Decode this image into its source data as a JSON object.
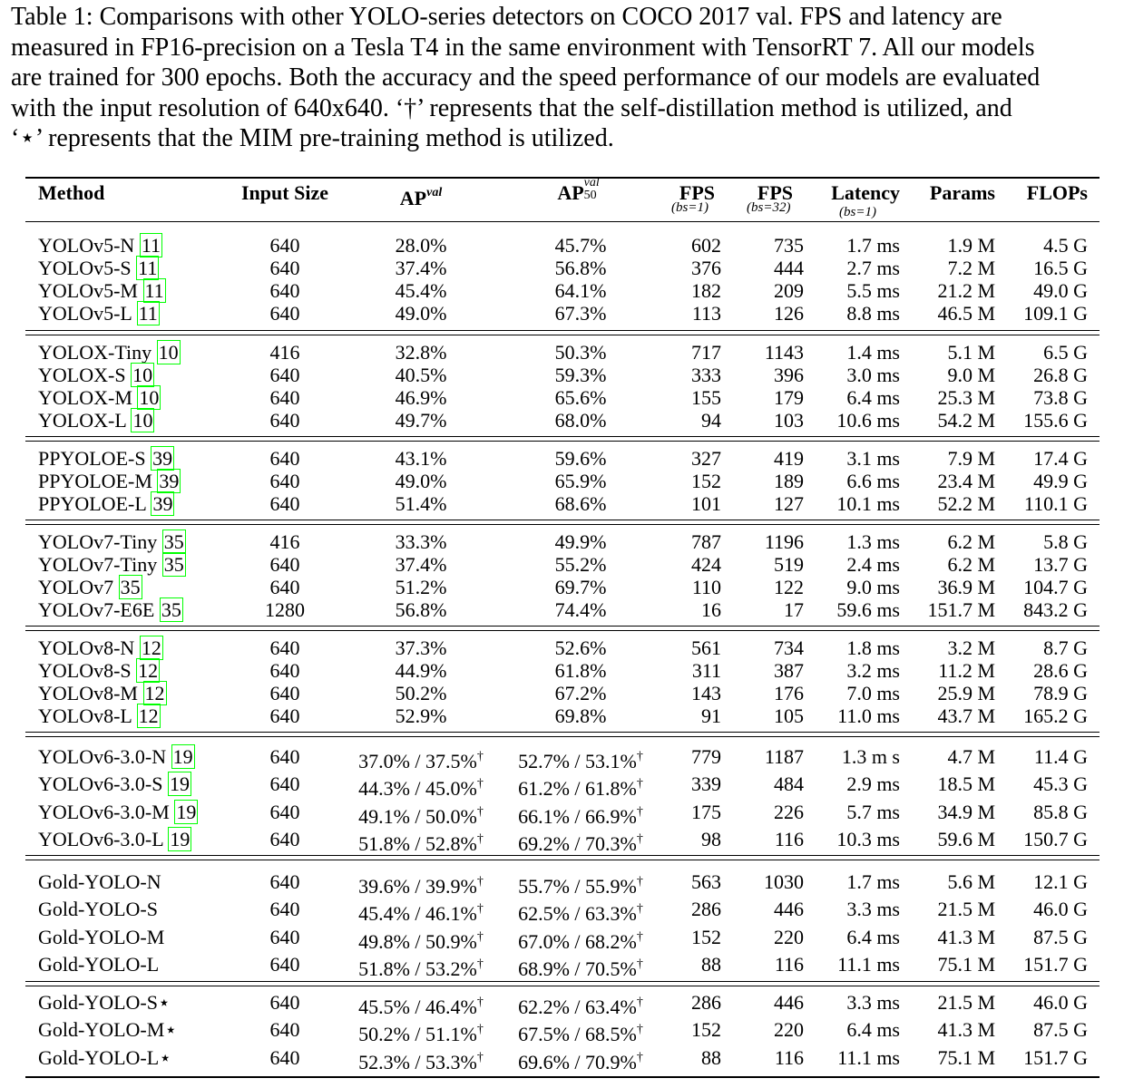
{
  "caption": {
    "line1": "Table 1: Comparisons with other YOLO-series detectors on COCO 2017 val. FPS and latency are",
    "line2": "measured in FP16-precision on a Tesla T4 in the same environment with TensorRT 7. All our models",
    "line3": "are trained for 300 epochs. Both the accuracy and the speed performance of our models are evaluated",
    "line4": "with the input resolution of 640x640. ‘†’ represents that the self-distillation method is utilized, and",
    "line5": "‘⋆’ represents that the MIM pre-training method is utilized."
  },
  "headers": {
    "method": "Method",
    "input_size": "Input Size",
    "ap": "AP",
    "ap_sup": "val",
    "ap50": "AP",
    "ap50_sup": "val",
    "ap50_sub": "50",
    "fps1": "FPS",
    "fps1_sub": "(bs=1)",
    "fps32": "FPS",
    "fps32_sub": "(bs=32)",
    "latency": "Latency",
    "latency_sub": "(bs=1)",
    "params": "Params",
    "flops": "FLOPs"
  },
  "groups": [
    {
      "rows": [
        {
          "method": "YOLOv5-N ",
          "cite": "11",
          "size": "640",
          "ap": "28.0%",
          "ap50": "45.7%",
          "fps1": "602",
          "fps32": "735",
          "latency": "1.7 ms",
          "params": "1.9 M",
          "flops": "4.5 G"
        },
        {
          "method": "YOLOv5-S ",
          "cite": "11",
          "size": "640",
          "ap": "37.4%",
          "ap50": "56.8%",
          "fps1": "376",
          "fps32": "444",
          "latency": "2.7 ms",
          "params": "7.2 M",
          "flops": "16.5 G"
        },
        {
          "method": "YOLOv5-M ",
          "cite": "11",
          "size": "640",
          "ap": "45.4%",
          "ap50": "64.1%",
          "fps1": "182",
          "fps32": "209",
          "latency": "5.5 ms",
          "params": "21.2 M",
          "flops": "49.0 G"
        },
        {
          "method": "YOLOv5-L ",
          "cite": "11",
          "size": "640",
          "ap": "49.0%",
          "ap50": "67.3%",
          "fps1": "113",
          "fps32": "126",
          "latency": "8.8 ms",
          "params": "46.5 M",
          "flops": "109.1 G"
        }
      ]
    },
    {
      "rows": [
        {
          "method": "YOLOX-Tiny ",
          "cite": "10",
          "size": "416",
          "ap": "32.8%",
          "ap50": "50.3%",
          "fps1": "717",
          "fps32": "1143",
          "latency": "1.4 ms",
          "params": "5.1 M",
          "flops": "6.5 G"
        },
        {
          "method": "YOLOX-S ",
          "cite": "10",
          "size": "640",
          "ap": "40.5%",
          "ap50": "59.3%",
          "fps1": "333",
          "fps32": "396",
          "latency": "3.0 ms",
          "params": "9.0 M",
          "flops": "26.8 G"
        },
        {
          "method": "YOLOX-M ",
          "cite": "10",
          "size": "640",
          "ap": "46.9%",
          "ap50": "65.6%",
          "fps1": "155",
          "fps32": "179",
          "latency": "6.4 ms",
          "params": "25.3 M",
          "flops": "73.8 G"
        },
        {
          "method": "YOLOX-L ",
          "cite": "10",
          "size": "640",
          "ap": "49.7%",
          "ap50": "68.0%",
          "fps1": "94",
          "fps32": "103",
          "latency": "10.6 ms",
          "params": "54.2 M",
          "flops": "155.6 G"
        }
      ]
    },
    {
      "rows": [
        {
          "method": "PPYOLOE-S ",
          "cite": "39",
          "size": "640",
          "ap": "43.1%",
          "ap50": "59.6%",
          "fps1": "327",
          "fps32": "419",
          "latency": "3.1 ms",
          "params": "7.9 M",
          "flops": "17.4 G"
        },
        {
          "method": "PPYOLOE-M ",
          "cite": "39",
          "size": "640",
          "ap": "49.0%",
          "ap50": "65.9%",
          "fps1": "152",
          "fps32": "189",
          "latency": "6.6 ms",
          "params": "23.4 M",
          "flops": "49.9 G"
        },
        {
          "method": "PPYOLOE-L ",
          "cite": "39",
          "size": "640",
          "ap": "51.4%",
          "ap50": "68.6%",
          "fps1": "101",
          "fps32": "127",
          "latency": "10.1 ms",
          "params": "52.2 M",
          "flops": "110.1 G"
        }
      ]
    },
    {
      "rows": [
        {
          "method": "YOLOv7-Tiny ",
          "cite": "35",
          "size": "416",
          "ap": "33.3%",
          "ap50": "49.9%",
          "fps1": "787",
          "fps32": "1196",
          "latency": "1.3 ms",
          "params": "6.2 M",
          "flops": "5.8 G"
        },
        {
          "method": "YOLOv7-Tiny ",
          "cite": "35",
          "size": "640",
          "ap": "37.4%",
          "ap50": "55.2%",
          "fps1": "424",
          "fps32": "519",
          "latency": "2.4 ms",
          "params": "6.2 M",
          "flops": "13.7 G"
        },
        {
          "method": "YOLOv7 ",
          "cite": "35",
          "size": "640",
          "ap": "51.2%",
          "ap50": "69.7%",
          "fps1": "110",
          "fps32": "122",
          "latency": "9.0 ms",
          "params": "36.9 M",
          "flops": "104.7 G"
        },
        {
          "method": "YOLOv7-E6E ",
          "cite": "35",
          "size": "1280",
          "ap": "56.8%",
          "ap50": "74.4%",
          "fps1": "16",
          "fps32": "17",
          "latency": "59.6 ms",
          "params": "151.7 M",
          "flops": "843.2 G"
        }
      ]
    },
    {
      "rows": [
        {
          "method": "YOLOv8-N ",
          "cite": "12",
          "size": "640",
          "ap": "37.3%",
          "ap50": "52.6%",
          "fps1": "561",
          "fps32": "734",
          "latency": "1.8 ms",
          "params": "3.2 M",
          "flops": "8.7 G"
        },
        {
          "method": "YOLOv8-S ",
          "cite": "12",
          "size": "640",
          "ap": "44.9%",
          "ap50": "61.8%",
          "fps1": "311",
          "fps32": "387",
          "latency": "3.2 ms",
          "params": "11.2 M",
          "flops": "28.6 G"
        },
        {
          "method": "YOLOv8-M ",
          "cite": "12",
          "size": "640",
          "ap": "50.2%",
          "ap50": "67.2%",
          "fps1": "143",
          "fps32": "176",
          "latency": "7.0 ms",
          "params": "25.9 M",
          "flops": "78.9 G"
        },
        {
          "method": "YOLOv8-L ",
          "cite": "12",
          "size": "640",
          "ap": "52.9%",
          "ap50": "69.8%",
          "fps1": "91",
          "fps32": "105",
          "latency": "11.0 ms",
          "params": "43.7 M",
          "flops": "165.2 G"
        }
      ]
    },
    {
      "rows": [
        {
          "method": "YOLOv6-3.0-N ",
          "cite": "19",
          "size": "640",
          "ap": "37.0% / 37.5%",
          "ap_dag": "†",
          "ap50": "52.7% / 53.1%",
          "ap50_dag": "†",
          "fps1": "779",
          "fps32": "1187",
          "latency": "1.3 m s",
          "params": "4.7 M",
          "flops": "11.4 G"
        },
        {
          "method": "YOLOv6-3.0-S ",
          "cite": "19",
          "size": "640",
          "ap": "44.3% / 45.0%",
          "ap_dag": "†",
          "ap50": "61.2% / 61.8%",
          "ap50_dag": "†",
          "fps1": "339",
          "fps32": "484",
          "latency": "2.9 ms",
          "params": "18.5 M",
          "flops": "45.3 G"
        },
        {
          "method": "YOLOv6-3.0-M ",
          "cite": "19",
          "size": "640",
          "ap": "49.1% / 50.0%",
          "ap_dag": "†",
          "ap50": "66.1% / 66.9%",
          "ap50_dag": "†",
          "fps1": "175",
          "fps32": "226",
          "latency": "5.7 ms",
          "params": "34.9 M",
          "flops": "85.8 G"
        },
        {
          "method": "YOLOv6-3.0-L ",
          "cite": "19",
          "size": "640",
          "ap": "51.8% / 52.8%",
          "ap_dag": "†",
          "ap50": "69.2% / 70.3%",
          "ap50_dag": "†",
          "fps1": "98",
          "fps32": "116",
          "latency": "10.3 ms",
          "params": "59.6 M",
          "flops": "150.7 G"
        }
      ]
    },
    {
      "rows": [
        {
          "method": "Gold-YOLO-N",
          "cite": "",
          "size": "640",
          "ap": "39.6% / 39.9%",
          "ap_dag": "†",
          "ap50": "55.7% / 55.9%",
          "ap50_dag": "†",
          "fps1": "563",
          "fps32": "1030",
          "latency": "1.7 ms",
          "params": "5.6 M",
          "flops": "12.1 G"
        },
        {
          "method": "Gold-YOLO-S",
          "cite": "",
          "size": "640",
          "ap": "45.4% / 46.1%",
          "ap_dag": "†",
          "ap50": "62.5% / 63.3%",
          "ap50_dag": "†",
          "fps1": "286",
          "fps32": "446",
          "latency": "3.3 ms",
          "params": "21.5 M",
          "flops": "46.0 G"
        },
        {
          "method": "Gold-YOLO-M",
          "cite": "",
          "size": "640",
          "ap": "49.8% / 50.9%",
          "ap_dag": "†",
          "ap50": "67.0% / 68.2%",
          "ap50_dag": "†",
          "fps1": "152",
          "fps32": "220",
          "latency": "6.4 ms",
          "params": "41.3 M",
          "flops": "87.5 G"
        },
        {
          "method": "Gold-YOLO-L",
          "cite": "",
          "size": "640",
          "ap": "51.8% / 53.2%",
          "ap_dag": "†",
          "ap50": "68.9% / 70.5%",
          "ap50_dag": "†",
          "fps1": "88",
          "fps32": "116",
          "latency": "11.1 ms",
          "params": "75.1 M",
          "flops": "151.7 G"
        }
      ]
    },
    {
      "rows": [
        {
          "method": "Gold-YOLO-S⋆",
          "cite": "",
          "size": "640",
          "ap": "45.5% / 46.4%",
          "ap_dag": "†",
          "ap50": "62.2% / 63.4%",
          "ap50_dag": "†",
          "fps1": "286",
          "fps32": "446",
          "latency": "3.3 ms",
          "params": "21.5 M",
          "flops": "46.0 G"
        },
        {
          "method": "Gold-YOLO-M⋆",
          "cite": "",
          "size": "640",
          "ap": "50.2% / 51.1%",
          "ap_dag": "†",
          "ap50": "67.5% / 68.5%",
          "ap50_dag": "†",
          "fps1": "152",
          "fps32": "220",
          "latency": "6.4 ms",
          "params": "41.3 M",
          "flops": "87.5 G"
        },
        {
          "method": "Gold-YOLO-L⋆",
          "cite": "",
          "size": "640",
          "ap": "52.3% / 53.3%",
          "ap_dag": "†",
          "ap50": "69.6% / 70.9%",
          "ap50_dag": "†",
          "fps1": "88",
          "fps32": "116",
          "latency": "11.1 ms",
          "params": "75.1 M",
          "flops": "151.7 G"
        }
      ]
    }
  ]
}
